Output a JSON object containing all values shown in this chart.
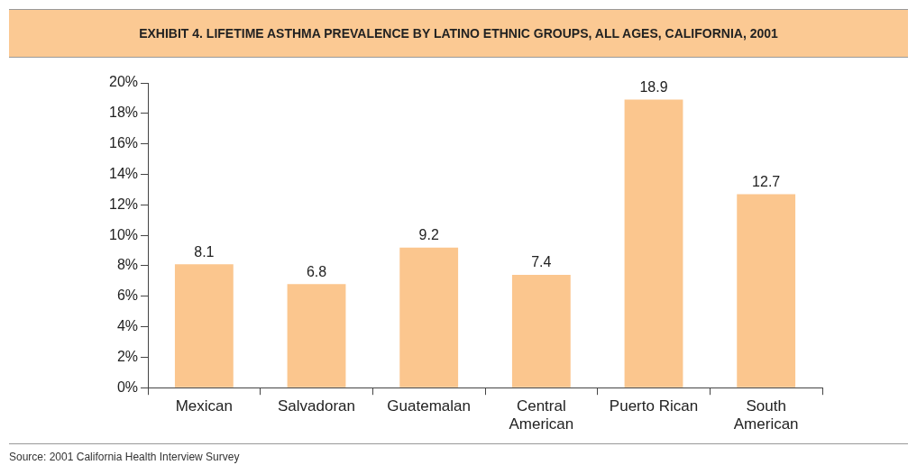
{
  "chart_data": {
    "type": "bar",
    "title": "EXHIBIT 4. LIFETIME ASTHMA PREVALENCE BY LATINO ETHNIC GROUPS, ALL AGES, CALIFORNIA, 2001",
    "categories": [
      "Mexican",
      "Salvadoran",
      "Guatemalan",
      "Central American",
      "Puerto Rican",
      "South American"
    ],
    "values": [
      8.1,
      6.8,
      9.2,
      7.4,
      18.9,
      12.7
    ],
    "color": "#fbc68e",
    "ylim": [
      0,
      20
    ],
    "yticks": [
      {
        "value": 0,
        "label": "0%"
      },
      {
        "value": 2,
        "label": "2%"
      },
      {
        "value": 4,
        "label": "4%"
      },
      {
        "value": 6,
        "label": "6%"
      },
      {
        "value": 8,
        "label": "8%"
      },
      {
        "value": 10,
        "label": "10%"
      },
      {
        "value": 12,
        "label": "12%"
      },
      {
        "value": 14,
        "label": "14%"
      },
      {
        "value": 16,
        "label": "16%"
      },
      {
        "value": 18,
        "label": "18%"
      },
      {
        "value": 20,
        "label": "20%"
      }
    ],
    "data_labels": true,
    "annotations": [
      "Source: 2001 California Health Interview Survey"
    ]
  }
}
